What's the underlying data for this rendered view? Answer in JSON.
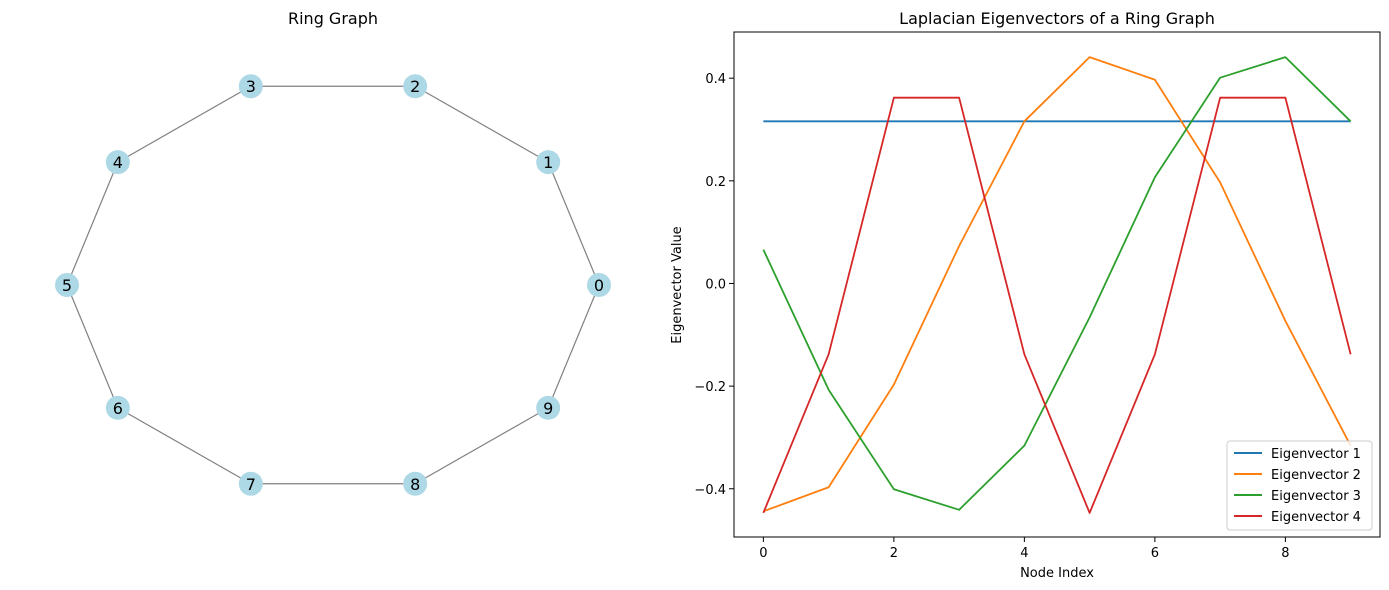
{
  "chart_data": [
    {
      "type": "network",
      "title": "Ring Graph",
      "nodes": [
        "0",
        "1",
        "2",
        "3",
        "4",
        "5",
        "6",
        "7",
        "8",
        "9"
      ],
      "edges": [
        [
          "0",
          "1"
        ],
        [
          "1",
          "2"
        ],
        [
          "2",
          "3"
        ],
        [
          "3",
          "4"
        ],
        [
          "4",
          "5"
        ],
        [
          "5",
          "6"
        ],
        [
          "6",
          "7"
        ],
        [
          "7",
          "8"
        ],
        [
          "8",
          "9"
        ],
        [
          "9",
          "0"
        ]
      ],
      "layout": "circular",
      "node_color": "#add8e6",
      "edge_color": "#808080"
    },
    {
      "type": "line",
      "title": "Laplacian Eigenvectors of a Ring Graph",
      "xlabel": "Node Index",
      "ylabel": "Eigenvector Value",
      "x": [
        0,
        1,
        2,
        3,
        4,
        5,
        6,
        7,
        8,
        9
      ],
      "xlim": [
        -0.45,
        9.45
      ],
      "ylim": [
        -0.494,
        0.49
      ],
      "xticks": [
        0,
        2,
        4,
        6,
        8
      ],
      "yticks": [
        -0.4,
        -0.2,
        0.0,
        0.2,
        0.4
      ],
      "ytick_labels": [
        "−0.4",
        "−0.2",
        "0.0",
        "0.2",
        "0.4"
      ],
      "legend_position": "lower-right",
      "grid": false,
      "series": [
        {
          "name": "Eigenvector 1",
          "color": "#1f77b4",
          "values": [
            0.316,
            0.316,
            0.316,
            0.316,
            0.316,
            0.316,
            0.316,
            0.316,
            0.316,
            0.316
          ]
        },
        {
          "name": "Eigenvector 2",
          "color": "#ff7f0e",
          "values": [
            -0.444,
            -0.397,
            -0.197,
            0.073,
            0.316,
            0.441,
            0.397,
            0.197,
            -0.073,
            -0.316
          ]
        },
        {
          "name": "Eigenvector 3",
          "color": "#2ca02c",
          "values": [
            0.066,
            -0.207,
            -0.401,
            -0.441,
            -0.316,
            -0.066,
            0.207,
            0.401,
            0.441,
            0.316
          ]
        },
        {
          "name": "Eigenvector 4",
          "color": "#d62728",
          "values": [
            -0.447,
            -0.138,
            0.362,
            0.362,
            -0.138,
            -0.447,
            -0.138,
            0.362,
            0.362,
            -0.138
          ]
        }
      ]
    }
  ]
}
